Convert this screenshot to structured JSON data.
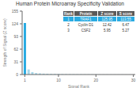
{
  "chart_data": {
    "type": "bar",
    "title": "Human Protein Microarray Specificity Validation",
    "xlabel": "Signal Rank",
    "ylabel": "Strength of Signal (Z score)",
    "x": [
      1,
      2,
      3,
      4,
      5,
      6,
      7,
      8,
      9,
      10,
      11,
      12,
      13,
      14,
      15,
      16,
      17,
      18,
      19,
      20,
      21,
      22,
      23,
      24,
      25,
      26,
      27,
      28,
      29,
      30
    ],
    "values": [
      125.95,
      12.42,
      5.95,
      3.5,
      2.8,
      2.2,
      1.9,
      1.6,
      1.4,
      1.2,
      1.0,
      0.9,
      0.8,
      0.7,
      0.6,
      0.6,
      0.5,
      0.5,
      0.4,
      0.4,
      0.3,
      0.3,
      0.3,
      0.2,
      0.2,
      0.2,
      0.2,
      0.1,
      0.1,
      0.1
    ],
    "colors": [
      "#29abe2",
      "#a8d8ea",
      "#a8d8ea",
      "#a8d8ea",
      "#a8d8ea",
      "#a8d8ea",
      "#a8d8ea",
      "#a8d8ea",
      "#a8d8ea",
      "#a8d8ea",
      "#a8d8ea",
      "#a8d8ea",
      "#a8d8ea",
      "#a8d8ea",
      "#a8d8ea",
      "#a8d8ea",
      "#a8d8ea",
      "#a8d8ea",
      "#a8d8ea",
      "#a8d8ea",
      "#a8d8ea",
      "#a8d8ea",
      "#a8d8ea",
      "#a8d8ea",
      "#a8d8ea",
      "#a8d8ea",
      "#a8d8ea",
      "#a8d8ea",
      "#a8d8ea",
      "#a8d8ea"
    ],
    "xlim": [
      0.3,
      30.5
    ],
    "xticks": [
      1,
      10,
      20,
      30
    ],
    "ylim": [
      0,
      155
    ],
    "yticks": [
      0,
      31,
      62,
      93,
      124,
      155
    ],
    "grid": false,
    "table": {
      "headers": [
        "Rank",
        "Protein",
        "Z score",
        "S score"
      ],
      "rows": [
        [
          "1",
          "TRAF1",
          "125.95",
          "113.55"
        ],
        [
          "2",
          "Cyclin D1",
          "12.42",
          "6.47"
        ],
        [
          "3",
          "CSF2",
          "5.95",
          "5.27"
        ]
      ]
    }
  }
}
